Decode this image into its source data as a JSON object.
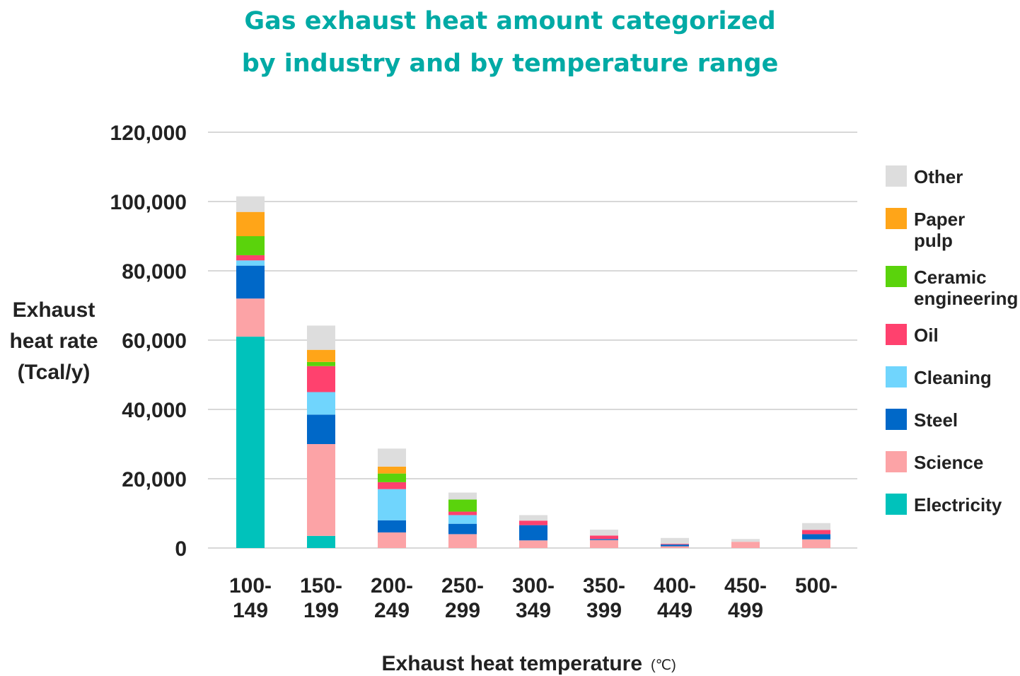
{
  "chart_data": {
    "type": "bar",
    "stacked": true,
    "title_lines": [
      "Gas exhaust heat amount categorized",
      "by industry and by temperature range"
    ],
    "title_color": "#00aaa5",
    "ylabel_lines": [
      "Exhaust",
      "heat rate",
      "(Tcal/y)"
    ],
    "xlabel": "Exhaust heat temperature",
    "xlabel_unit": "(℃)",
    "ylim": [
      0,
      120000
    ],
    "yticks": [
      0,
      20000,
      40000,
      60000,
      80000,
      100000,
      120000
    ],
    "ytick_labels": [
      "0",
      "20,000",
      "40,000",
      "60,000",
      "80,000",
      "100,000",
      "120,000"
    ],
    "grid": true,
    "legend_position": "right",
    "categories": [
      [
        "100-",
        "149"
      ],
      [
        "150-",
        "199"
      ],
      [
        "200-",
        "249"
      ],
      [
        "250-",
        "299"
      ],
      [
        "300-",
        "349"
      ],
      [
        "350-",
        "399"
      ],
      [
        "400-",
        "449"
      ],
      [
        "450-",
        "499"
      ],
      [
        "500-"
      ]
    ],
    "series": [
      {
        "name": "Electricity",
        "color": "#00c2bb",
        "values": [
          61000,
          3500,
          0,
          0,
          0,
          0,
          0,
          0,
          0
        ]
      },
      {
        "name": "Science",
        "color": "#fca3a6",
        "values": [
          11000,
          26500,
          4500,
          4000,
          2200,
          2300,
          500,
          1800,
          2500
        ]
      },
      {
        "name": "Steel",
        "color": "#0068c8",
        "values": [
          9500,
          8500,
          3500,
          3000,
          4400,
          300,
          500,
          0,
          1500
        ]
      },
      {
        "name": "Cleaning",
        "color": "#70d5fd",
        "values": [
          1500,
          6500,
          9000,
          2500,
          0,
          0,
          0,
          0,
          0
        ]
      },
      {
        "name": "Oil",
        "color": "#ff416e",
        "values": [
          1500,
          7500,
          2000,
          1000,
          1300,
          1000,
          200,
          0,
          1200
        ]
      },
      {
        "name": "Ceramic engineering",
        "color": "#5ad30c",
        "values": [
          5500,
          1200,
          2500,
          3500,
          0,
          0,
          0,
          0,
          0
        ]
      },
      {
        "name": "Paper pulp",
        "color": "#ffa518",
        "values": [
          7000,
          3500,
          2000,
          0,
          0,
          0,
          0,
          0,
          0
        ]
      },
      {
        "name": "Other",
        "color": "#dddddd",
        "values": [
          4500,
          7000,
          5200,
          2000,
          1600,
          1700,
          1700,
          800,
          2000
        ]
      }
    ],
    "legend": [
      {
        "label_lines": [
          "Other"
        ],
        "color": "#dddddd"
      },
      {
        "label_lines": [
          "Paper",
          "pulp"
        ],
        "color": "#ffa518"
      },
      {
        "label_lines": [
          "Ceramic",
          "engineering"
        ],
        "color": "#5ad30c"
      },
      {
        "label_lines": [
          "Oil"
        ],
        "color": "#ff416e"
      },
      {
        "label_lines": [
          "Cleaning"
        ],
        "color": "#70d5fd"
      },
      {
        "label_lines": [
          "Steel"
        ],
        "color": "#0068c8"
      },
      {
        "label_lines": [
          "Science"
        ],
        "color": "#fca3a6"
      },
      {
        "label_lines": [
          "Electricity"
        ],
        "color": "#00c2bb"
      }
    ]
  }
}
